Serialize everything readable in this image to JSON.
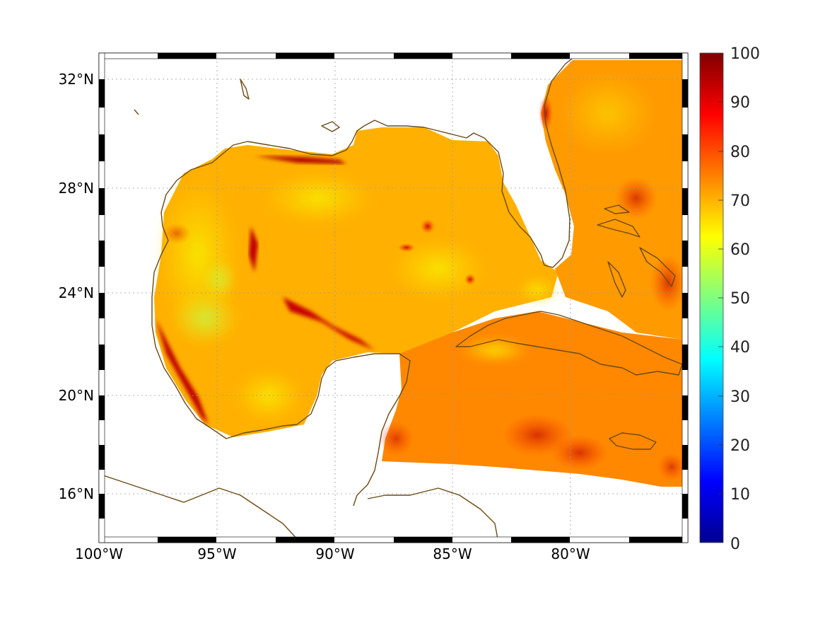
{
  "map": {
    "lon_labels": [
      "100°W",
      "95°W",
      "90°W",
      "85°W",
      "80°W"
    ],
    "lat_labels": [
      "32°N",
      "28°N",
      "24°N",
      "20°N",
      "16°N"
    ],
    "lon_range": [
      -100,
      -75
    ],
    "lat_range": [
      14,
      33
    ],
    "land_color": "#ffffff",
    "coast_color": "#6b4a14",
    "field_description_colors": [
      "#ff9a00",
      "#ffbf00",
      "#e01010",
      "#a00000"
    ]
  },
  "colorbar": {
    "ticks": [
      "100",
      "90",
      "80",
      "70",
      "60",
      "50",
      "40",
      "30",
      "20",
      "10",
      "0"
    ],
    "min": 0,
    "max": 100,
    "colormap": "jet"
  }
}
